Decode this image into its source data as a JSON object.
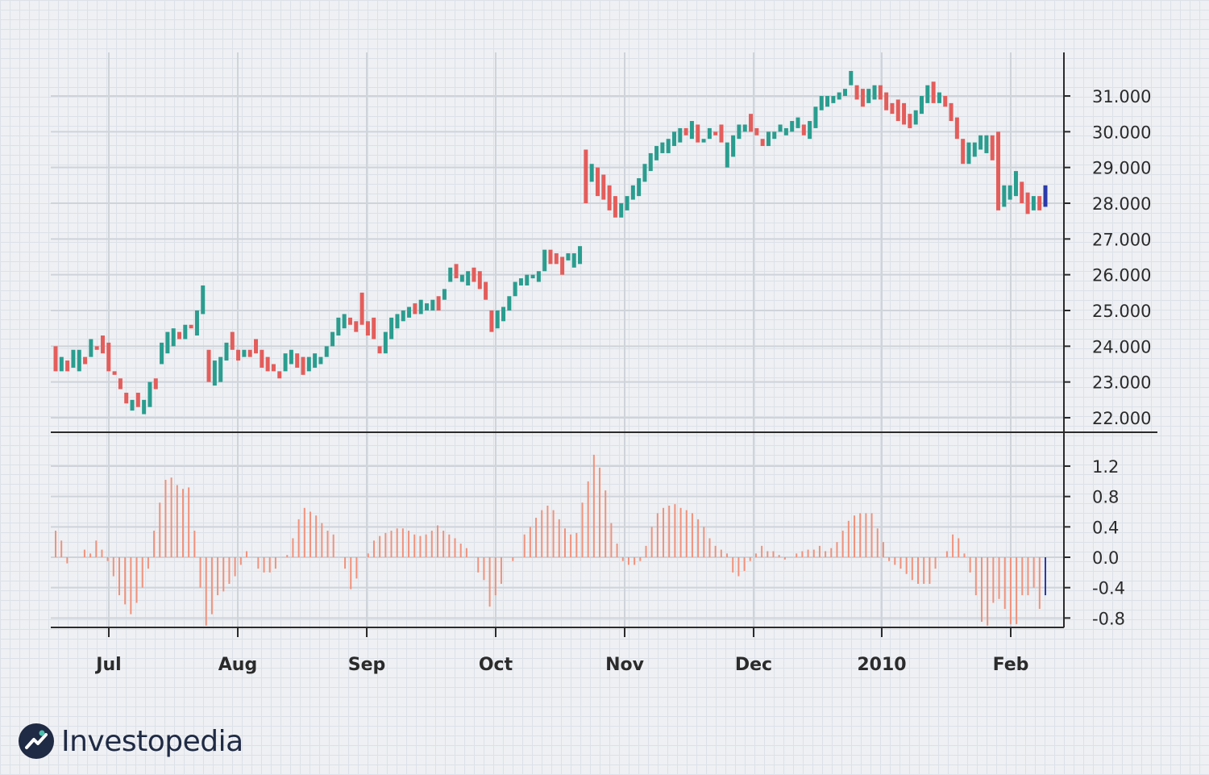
{
  "brand": {
    "name": "Investopedia",
    "icon": "investopedia-logo-icon"
  },
  "colors": {
    "up": "#2a9d8f",
    "down": "#e35d5b",
    "histogram": "#f0927c",
    "latest": "#2b3aa8",
    "grid": "#cfd3da",
    "axis": "#2b2b2b"
  },
  "chart_data": [
    {
      "type": "ohlc",
      "panel": "price",
      "x": [
        "Jul",
        "Aug",
        "Sep",
        "Oct",
        "Nov",
        "Dec",
        "2010",
        "Feb"
      ],
      "y_ticks": [
        "31.000",
        "30.000",
        "29.000",
        "28.000",
        "27.000",
        "26.000",
        "25.000",
        "24.000",
        "23.000",
        "22.000"
      ],
      "ylim": [
        21700,
        31900
      ],
      "grid": true,
      "series": [
        {
          "points": [
            {
              "o": 24000,
              "c": 23300
            },
            {
              "o": 23300,
              "c": 23700
            },
            {
              "o": 23600,
              "c": 23300
            },
            {
              "o": 23400,
              "c": 23900
            },
            {
              "o": 23300,
              "c": 23900
            },
            {
              "o": 23700,
              "c": 23500
            },
            {
              "o": 23700,
              "c": 24200
            },
            {
              "o": 24000,
              "c": 23900
            },
            {
              "o": 24300,
              "c": 23800
            },
            {
              "o": 24100,
              "c": 23300
            },
            {
              "o": 23300,
              "c": 23200
            },
            {
              "o": 23100,
              "c": 22800
            },
            {
              "o": 22700,
              "c": 22400
            },
            {
              "o": 22200,
              "c": 22500
            },
            {
              "o": 22700,
              "c": 22300
            },
            {
              "o": 22100,
              "c": 22500
            },
            {
              "o": 22300,
              "c": 23000
            },
            {
              "o": 23100,
              "c": 22800
            },
            {
              "o": 23500,
              "c": 24100
            },
            {
              "o": 23800,
              "c": 24400
            },
            {
              "o": 24000,
              "c": 24500
            },
            {
              "o": 24400,
              "c": 24200
            },
            {
              "o": 24200,
              "c": 24600
            },
            {
              "o": 24600,
              "c": 24500
            },
            {
              "o": 24300,
              "c": 25000
            },
            {
              "o": 24900,
              "c": 25700
            },
            {
              "o": 23900,
              "c": 23000
            },
            {
              "o": 22900,
              "c": 23600
            },
            {
              "o": 23000,
              "c": 23700
            },
            {
              "o": 23600,
              "c": 24100
            },
            {
              "o": 24400,
              "c": 23900
            },
            {
              "o": 23900,
              "c": 23600
            },
            {
              "o": 23700,
              "c": 23900
            },
            {
              "o": 23900,
              "c": 23700
            },
            {
              "o": 24200,
              "c": 23800
            },
            {
              "o": 23900,
              "c": 23400
            },
            {
              "o": 23700,
              "c": 23300
            },
            {
              "o": 23500,
              "c": 23300
            },
            {
              "o": 23300,
              "c": 23100
            },
            {
              "o": 23300,
              "c": 23800
            },
            {
              "o": 23500,
              "c": 23900
            },
            {
              "o": 23800,
              "c": 23400
            },
            {
              "o": 23700,
              "c": 23200
            },
            {
              "o": 23300,
              "c": 23700
            },
            {
              "o": 23400,
              "c": 23800
            },
            {
              "o": 23500,
              "c": 23700
            },
            {
              "o": 23700,
              "c": 24000
            },
            {
              "o": 24000,
              "c": 24400
            },
            {
              "o": 24300,
              "c": 24800
            },
            {
              "o": 24500,
              "c": 24900
            },
            {
              "o": 24800,
              "c": 24600
            },
            {
              "o": 24700,
              "c": 24400
            },
            {
              "o": 25500,
              "c": 24600
            },
            {
              "o": 24700,
              "c": 24300
            },
            {
              "o": 24800,
              "c": 24200
            },
            {
              "o": 24000,
              "c": 23800
            },
            {
              "o": 23800,
              "c": 24400
            },
            {
              "o": 24200,
              "c": 24800
            },
            {
              "o": 24500,
              "c": 24900
            },
            {
              "o": 24700,
              "c": 25000
            },
            {
              "o": 24800,
              "c": 25100
            },
            {
              "o": 25200,
              "c": 24900
            },
            {
              "o": 24900,
              "c": 25300
            },
            {
              "o": 25000,
              "c": 25200
            },
            {
              "o": 25000,
              "c": 25300
            },
            {
              "o": 25400,
              "c": 25000
            },
            {
              "o": 25300,
              "c": 25600
            },
            {
              "o": 25800,
              "c": 26200
            },
            {
              "o": 26300,
              "c": 25900
            },
            {
              "o": 25800,
              "c": 26000
            },
            {
              "o": 25700,
              "c": 26100
            },
            {
              "o": 26200,
              "c": 25800
            },
            {
              "o": 26100,
              "c": 25600
            },
            {
              "o": 25800,
              "c": 25300
            },
            {
              "o": 25000,
              "c": 24400
            },
            {
              "o": 24500,
              "c": 25000
            },
            {
              "o": 24700,
              "c": 25100
            },
            {
              "o": 25000,
              "c": 25400
            },
            {
              "o": 25400,
              "c": 25800
            },
            {
              "o": 25700,
              "c": 25900
            },
            {
              "o": 25700,
              "c": 26000
            },
            {
              "o": 25900,
              "c": 26000
            },
            {
              "o": 25800,
              "c": 26100
            },
            {
              "o": 26100,
              "c": 26700
            },
            {
              "o": 26700,
              "c": 26300
            },
            {
              "o": 26600,
              "c": 26300
            },
            {
              "o": 26500,
              "c": 26000
            },
            {
              "o": 26400,
              "c": 26600
            },
            {
              "o": 26200,
              "c": 26600
            },
            {
              "o": 26300,
              "c": 26800
            },
            {
              "o": 29500,
              "c": 28000
            },
            {
              "o": 28600,
              "c": 29100
            },
            {
              "o": 29000,
              "c": 28200
            },
            {
              "o": 28800,
              "c": 28100
            },
            {
              "o": 28500,
              "c": 27800
            },
            {
              "o": 28200,
              "c": 27600
            },
            {
              "o": 27600,
              "c": 28000
            },
            {
              "o": 27800,
              "c": 28200
            },
            {
              "o": 28100,
              "c": 28500
            },
            {
              "o": 28200,
              "c": 28700
            },
            {
              "o": 28600,
              "c": 29100
            },
            {
              "o": 28900,
              "c": 29400
            },
            {
              "o": 29200,
              "c": 29600
            },
            {
              "o": 29400,
              "c": 29700
            },
            {
              "o": 29400,
              "c": 29800
            },
            {
              "o": 29600,
              "c": 30000
            },
            {
              "o": 29700,
              "c": 30100
            },
            {
              "o": 30100,
              "c": 29900
            },
            {
              "o": 29800,
              "c": 30300
            },
            {
              "o": 30200,
              "c": 29700
            },
            {
              "o": 29700,
              "c": 29800
            },
            {
              "o": 29800,
              "c": 30100
            },
            {
              "o": 30000,
              "c": 29900
            },
            {
              "o": 30200,
              "c": 29700
            },
            {
              "o": 29000,
              "c": 29700
            },
            {
              "o": 29300,
              "c": 29900
            },
            {
              "o": 29800,
              "c": 30200
            },
            {
              "o": 30000,
              "c": 30200
            },
            {
              "o": 30500,
              "c": 30000
            },
            {
              "o": 30100,
              "c": 29900
            },
            {
              "o": 29800,
              "c": 29600
            },
            {
              "o": 29600,
              "c": 30000
            },
            {
              "o": 29800,
              "c": 30000
            },
            {
              "o": 30000,
              "c": 30200
            },
            {
              "o": 29900,
              "c": 30100
            },
            {
              "o": 30000,
              "c": 30300
            },
            {
              "o": 30100,
              "c": 30400
            },
            {
              "o": 30200,
              "c": 29900
            },
            {
              "o": 29800,
              "c": 30300
            },
            {
              "o": 30100,
              "c": 30700
            },
            {
              "o": 30600,
              "c": 31000
            },
            {
              "o": 30700,
              "c": 31000
            },
            {
              "o": 30800,
              "c": 31000
            },
            {
              "o": 30900,
              "c": 31100
            },
            {
              "o": 31000,
              "c": 31200
            },
            {
              "o": 31300,
              "c": 31700
            },
            {
              "o": 31300,
              "c": 30900
            },
            {
              "o": 31200,
              "c": 30700
            },
            {
              "o": 30800,
              "c": 31200
            },
            {
              "o": 30900,
              "c": 31300
            },
            {
              "o": 31300,
              "c": 30900
            },
            {
              "o": 31100,
              "c": 30600
            },
            {
              "o": 30800,
              "c": 30500
            },
            {
              "o": 30900,
              "c": 30300
            },
            {
              "o": 30800,
              "c": 30200
            },
            {
              "o": 30500,
              "c": 30100
            },
            {
              "o": 30200,
              "c": 30600
            },
            {
              "o": 30500,
              "c": 31000
            },
            {
              "o": 30800,
              "c": 31300
            },
            {
              "o": 31400,
              "c": 30800
            },
            {
              "o": 30800,
              "c": 31100
            },
            {
              "o": 31000,
              "c": 30700
            },
            {
              "o": 30800,
              "c": 30300
            },
            {
              "o": 30400,
              "c": 29800
            },
            {
              "o": 29800,
              "c": 29100
            },
            {
              "o": 29100,
              "c": 29700
            },
            {
              "o": 29300,
              "c": 29700
            },
            {
              "o": 29500,
              "c": 29900
            },
            {
              "o": 29400,
              "c": 29900
            },
            {
              "o": 29900,
              "c": 29200
            },
            {
              "o": 30000,
              "c": 27800
            },
            {
              "o": 27900,
              "c": 28500
            },
            {
              "o": 28100,
              "c": 28500
            },
            {
              "o": 28200,
              "c": 28900
            },
            {
              "o": 28600,
              "c": 28000
            },
            {
              "o": 28300,
              "c": 27700
            },
            {
              "o": 27800,
              "c": 28200
            },
            {
              "o": 28200,
              "c": 27800
            },
            {
              "o": 27900,
              "c": 28500
            }
          ]
        }
      ]
    },
    {
      "type": "histogram",
      "panel": "oscillator",
      "y_ticks": [
        "1.2",
        "0.8",
        "0.4",
        "0.0",
        "-0.4",
        "-0.8"
      ],
      "ylim": [
        -0.95,
        1.35
      ],
      "grid": true,
      "series": [
        {
          "values": [
            0.35,
            0.22,
            -0.08,
            0.0,
            0.0,
            0.1,
            0.05,
            0.22,
            0.1,
            -0.05,
            -0.25,
            -0.5,
            -0.62,
            -0.75,
            -0.6,
            -0.4,
            -0.15,
            0.35,
            0.72,
            1.02,
            1.05,
            0.95,
            0.9,
            0.92,
            0.35,
            -0.4,
            -0.9,
            -0.75,
            -0.5,
            -0.45,
            -0.35,
            -0.25,
            -0.1,
            0.08,
            0.0,
            -0.15,
            -0.2,
            -0.2,
            -0.15,
            0.0,
            0.03,
            0.25,
            0.5,
            0.65,
            0.6,
            0.55,
            0.45,
            0.35,
            0.3,
            0.0,
            -0.15,
            -0.42,
            -0.28,
            0.0,
            0.05,
            0.22,
            0.28,
            0.32,
            0.35,
            0.38,
            0.38,
            0.35,
            0.3,
            0.28,
            0.3,
            0.35,
            0.42,
            0.35,
            0.3,
            0.25,
            0.18,
            0.12,
            0.0,
            -0.2,
            -0.3,
            -0.65,
            -0.5,
            -0.35,
            0.0,
            -0.05,
            0.0,
            0.3,
            0.4,
            0.52,
            0.62,
            0.68,
            0.62,
            0.5,
            0.38,
            0.3,
            0.32,
            0.72,
            1.0,
            1.35,
            1.18,
            0.88,
            0.45,
            0.18,
            -0.05,
            -0.1,
            -0.1,
            -0.05,
            0.15,
            0.4,
            0.58,
            0.65,
            0.68,
            0.7,
            0.65,
            0.62,
            0.58,
            0.5,
            0.4,
            0.25,
            0.15,
            0.1,
            0.05,
            -0.2,
            -0.25,
            -0.18,
            -0.05,
            0.05,
            0.15,
            0.08,
            0.08,
            0.03,
            -0.03,
            0.0,
            0.05,
            0.08,
            0.1,
            0.1,
            0.15,
            0.08,
            0.12,
            0.2,
            0.35,
            0.48,
            0.55,
            0.58,
            0.58,
            0.58,
            0.38,
            0.2,
            -0.05,
            -0.1,
            -0.15,
            -0.22,
            -0.3,
            -0.35,
            -0.35,
            -0.35,
            -0.15,
            0.0,
            0.08,
            0.3,
            0.25,
            0.05,
            -0.2,
            -0.5,
            -0.85,
            -0.9,
            -0.6,
            -0.55,
            -0.68,
            -0.88,
            -0.88,
            -0.5,
            -0.5,
            -0.4,
            -0.68,
            -0.5
          ]
        }
      ]
    }
  ],
  "month_labels": [
    "Jul",
    "Aug",
    "Sep",
    "Oct",
    "Nov",
    "Dec",
    "2010",
    "Feb"
  ]
}
